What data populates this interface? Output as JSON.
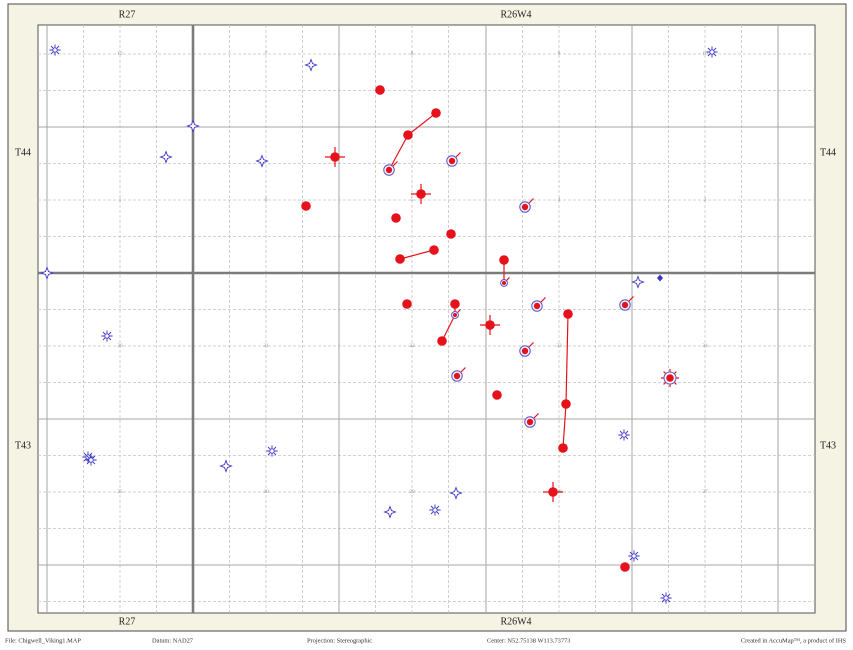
{
  "map": {
    "range_labels": {
      "top": [
        "R27",
        "R26W4"
      ],
      "bottom": [
        "R27",
        "R26W4"
      ]
    },
    "township_labels": {
      "left": [
        "T44",
        "T43"
      ],
      "right": [
        "T44",
        "T43"
      ]
    },
    "section_numbers": [
      [
        "12",
        "7",
        "8",
        "9",
        "10"
      ],
      [
        "1",
        "6",
        "5",
        "4",
        "3"
      ],
      [
        "36",
        "31",
        "32",
        "33",
        "34"
      ],
      [
        "25",
        "30",
        "29",
        "28",
        "27"
      ]
    ],
    "well_symbol_icons": [
      "oil-well-icon",
      "suspended-oil-well-icon",
      "directional-oil-well-icon",
      "gas-well-icon",
      "dry-hole-icon",
      "abandoned-well-icon"
    ],
    "colors": {
      "frame_background": "#f5f3e3",
      "map_background": "#ffffff",
      "oil_red": "#e5121b",
      "dry_blue": "#3b35c6",
      "ring_blue": "#6558cf",
      "lsd_grid": "#c4c4c4",
      "section_line": "#a6a6a6",
      "survey_line": "#7b7b7b"
    }
  },
  "footer": {
    "file": "File:  Chigwell_Viking1.MAP",
    "datum": "Datum: NAD27",
    "projection": "Projection: Stereographic",
    "center": "Center: N52.75138  W113.73773",
    "credit": "Created in AccuMap™, a product of IHS"
  }
}
